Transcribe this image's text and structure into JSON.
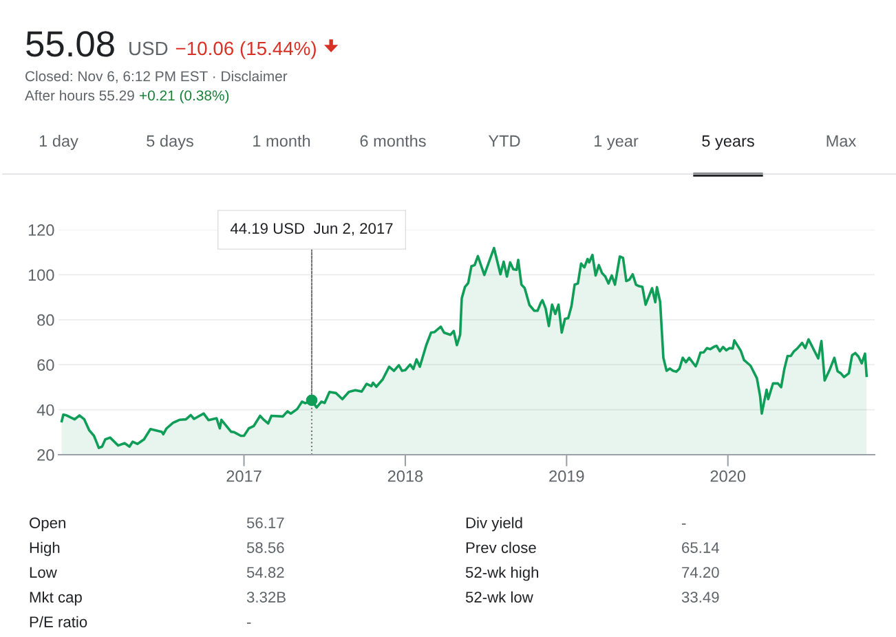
{
  "chart_data": {
    "type": "area",
    "x": [
      2015.87,
      2015.88,
      2015.9,
      2015.95,
      2015.98,
      2016.01,
      2016.04,
      2016.07,
      2016.1,
      2016.12,
      2016.14,
      2016.17,
      2016.22,
      2016.26,
      2016.29,
      2016.31,
      2016.34,
      2016.38,
      2016.42,
      2016.49,
      2016.5,
      2016.52,
      2016.56,
      2016.6,
      2016.64,
      2016.67,
      2016.69,
      2016.75,
      2016.78,
      2016.83,
      2016.85,
      2016.86,
      2016.92,
      2016.94,
      2016.98,
      2017.0,
      2017.03,
      2017.06,
      2017.1,
      2017.12,
      2017.15,
      2017.17,
      2017.24,
      2017.27,
      2017.29,
      2017.33,
      2017.36,
      2017.38,
      2017.42,
      2017.45,
      2017.48,
      2017.5,
      2017.53,
      2017.57,
      2017.61,
      2017.65,
      2017.69,
      2017.73,
      2017.76,
      2017.79,
      2017.8,
      2017.82,
      2017.86,
      2017.9,
      2017.93,
      2017.96,
      2017.98,
      2018.0,
      2018.03,
      2018.05,
      2018.07,
      2018.09,
      2018.13,
      2018.16,
      2018.18,
      2018.22,
      2018.24,
      2018.28,
      2018.3,
      2018.32,
      2018.34,
      2018.35,
      2018.37,
      2018.39,
      2018.41,
      2018.43,
      2018.45,
      2018.49,
      2018.55,
      2018.59,
      2018.61,
      2018.63,
      2018.65,
      2018.67,
      2018.69,
      2018.7,
      2018.72,
      2018.74,
      2018.77,
      2018.8,
      2018.82,
      2018.84,
      2018.85,
      2018.87,
      2018.89,
      2018.91,
      2018.93,
      2018.95,
      2018.97,
      2018.99,
      2019.01,
      2019.03,
      2019.05,
      2019.07,
      2019.09,
      2019.11,
      2019.13,
      2019.14,
      2019.16,
      2019.18,
      2019.2,
      2019.22,
      2019.24,
      2019.26,
      2019.28,
      2019.3,
      2019.33,
      2019.35,
      2019.37,
      2019.39,
      2019.41,
      2019.43,
      2019.45,
      2019.47,
      2019.49,
      2019.53,
      2019.55,
      2019.56,
      2019.58,
      2019.6,
      2019.62,
      2019.64,
      2019.66,
      2019.68,
      2019.7,
      2019.72,
      2019.74,
      2019.76,
      2019.8,
      2019.81,
      2019.83,
      2019.85,
      2019.87,
      2019.89,
      2019.92,
      2019.93,
      2019.95,
      2019.97,
      2019.99,
      2020.01,
      2020.03,
      2020.04,
      2020.08,
      2020.1,
      2020.14,
      2020.18,
      2020.2,
      2020.21,
      2020.24,
      2020.25,
      2020.28,
      2020.31,
      2020.33,
      2020.35,
      2020.37,
      2020.39,
      2020.41,
      2020.43,
      2020.46,
      2020.48,
      2020.5,
      2020.56,
      2020.58,
      2020.6,
      2020.63,
      2020.66,
      2020.68,
      2020.7,
      2020.72,
      2020.75,
      2020.77,
      2020.79,
      2020.81,
      2020.83,
      2020.85,
      2020.86
    ],
    "series": [
      {
        "color": "#0f9d58",
        "values": [
          34.9,
          37.8,
          37.5,
          35.7,
          37.5,
          35.7,
          30.9,
          28.4,
          23.0,
          23.6,
          26.8,
          27.6,
          24.1,
          25.1,
          23.6,
          25.8,
          24.8,
          26.8,
          31.4,
          30.2,
          29.1,
          31.7,
          34.2,
          35.5,
          35.7,
          37.6,
          35.9,
          38.3,
          35.4,
          36.2,
          31.7,
          35.5,
          30.2,
          30.0,
          28.4,
          28.4,
          31.7,
          32.7,
          37.3,
          35.7,
          33.9,
          37.3,
          37.0,
          39.3,
          38.3,
          40.3,
          43.6,
          42.9,
          44.19,
          41.0,
          43.6,
          43.0,
          47.9,
          47.4,
          44.7,
          47.9,
          48.7,
          48.1,
          51.5,
          50.5,
          52.0,
          50.2,
          53.5,
          59.1,
          57.3,
          59.8,
          57.3,
          57.6,
          60.1,
          58.1,
          62.4,
          59.1,
          68.7,
          74.3,
          74.5,
          76.9,
          74.3,
          73.3,
          75.0,
          68.7,
          73.3,
          89.5,
          94.6,
          96.3,
          103.8,
          104.3,
          108.3,
          99.9,
          111.9,
          100.2,
          105.8,
          99.2,
          105.5,
          102.4,
          102.2,
          106.6,
          95.6,
          94.1,
          86.5,
          84.0,
          84.0,
          87.5,
          88.7,
          85.0,
          77.2,
          86.7,
          82.6,
          86.7,
          74.3,
          80.4,
          80.7,
          86.0,
          95.6,
          96.1,
          105.0,
          103.3,
          107.0,
          105.5,
          108.8,
          99.7,
          104.3,
          100.7,
          99.2,
          96.1,
          99.7,
          95.6,
          108.1,
          107.5,
          97.2,
          97.9,
          100.2,
          95.6,
          94.9,
          94.6,
          86.7,
          94.0,
          87.8,
          94.5,
          88.0,
          63.1,
          57.3,
          58.3,
          57.3,
          56.9,
          58.3,
          63.1,
          61.1,
          63.1,
          59.3,
          60.9,
          65.4,
          65.5,
          67.4,
          66.9,
          68.2,
          68.4,
          66.0,
          67.9,
          66.4,
          67.4,
          67.2,
          70.8,
          66.2,
          62.1,
          59.6,
          54.0,
          45.9,
          38.3,
          48.9,
          44.7,
          51.7,
          51.7,
          50.0,
          58.1,
          63.9,
          63.9,
          66.0,
          67.2,
          69.7,
          67.4,
          71.3,
          62.8,
          70.5,
          53.0,
          57.6,
          63.1,
          57.1,
          56.2,
          54.5,
          56.2,
          64.2,
          65.2,
          63.6,
          60.6,
          64.9,
          55.08
        ]
      }
    ],
    "xlim": [
      2015.85,
      2020.91
    ],
    "xticks": [
      2017,
      2018,
      2019,
      2020
    ],
    "ylim": [
      20,
      120
    ],
    "yticks": [
      20,
      40,
      60,
      80,
      100,
      120
    ],
    "grid": "y",
    "ref_lines": [
      {
        "axis": "x",
        "value": 2017.42,
        "label": null,
        "color": "#757575",
        "line_style": "dotted"
      }
    ],
    "annotations": [
      "55.08",
      "USD",
      "−10.06 (15.44%)",
      "Closed: Nov 6, 6:12 PM EST · Disclaimer",
      "After hours 55.29",
      "+0.21 (0.38%)",
      "1 day",
      "5 days",
      "1 month",
      "6 months",
      "YTD",
      "1 year",
      "5 years",
      "Max",
      "Open",
      "56.17",
      "High",
      "58.56",
      "Low",
      "54.82",
      "Mkt cap",
      "3.32B",
      "P/E ratio",
      "-",
      "Div yield",
      "-",
      "Prev close",
      "65.14",
      "52-wk high",
      "74.20",
      "52-wk low",
      "33.49",
      {
        "text": "44.19 USD  Jun 2, 2017",
        "x": 2017.42,
        "y": 44.19
      }
    ]
  }
}
